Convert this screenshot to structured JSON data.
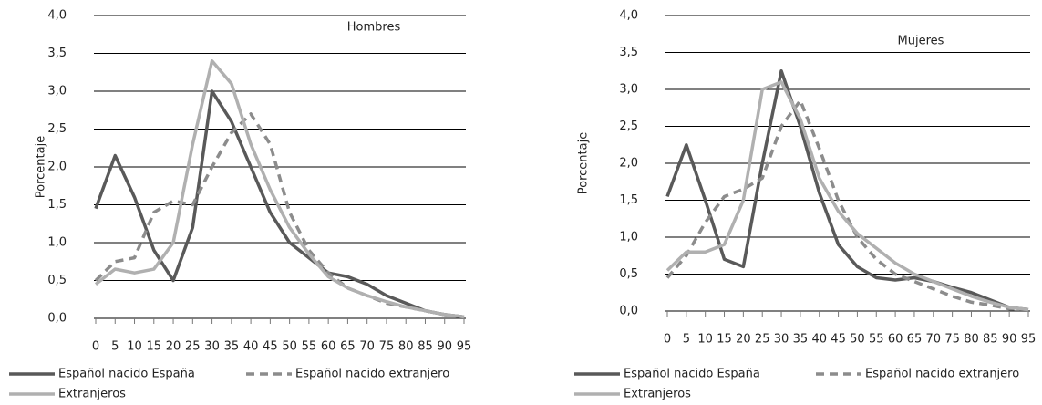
{
  "chart_data": [
    {
      "type": "line",
      "title": "Hombres",
      "y_label": "Porcentaje",
      "x": [
        0,
        5,
        10,
        15,
        20,
        25,
        30,
        35,
        40,
        45,
        50,
        55,
        60,
        65,
        70,
        75,
        80,
        85,
        90,
        95
      ],
      "xlim": [
        0,
        95
      ],
      "xticks": [
        0,
        5,
        10,
        15,
        20,
        25,
        30,
        35,
        40,
        45,
        50,
        55,
        60,
        65,
        70,
        75,
        80,
        85,
        90,
        95
      ],
      "ylim": [
        0,
        4
      ],
      "yticks": [
        {
          "value": 0,
          "label": "0,0"
        },
        {
          "value": 0.5,
          "label": "0,5"
        },
        {
          "value": 1,
          "label": "1,0"
        },
        {
          "value": 1.5,
          "label": "1,5"
        },
        {
          "value": 2,
          "label": "2,0"
        },
        {
          "value": 2.5,
          "label": "2,5"
        },
        {
          "value": 3,
          "label": "3,0"
        },
        {
          "value": 3.5,
          "label": "3,5"
        },
        {
          "value": 4,
          "label": "4,0"
        }
      ],
      "grid": true,
      "series": [
        {
          "name": "Español nacido España",
          "color": "#595959",
          "dashed": false,
          "values": [
            1.45,
            2.15,
            1.6,
            0.9,
            0.5,
            1.2,
            3.0,
            2.6,
            2.0,
            1.4,
            1.0,
            0.8,
            0.6,
            0.55,
            0.45,
            0.3,
            0.2,
            0.1,
            0.05,
            0.02
          ]
        },
        {
          "name": "Español nacido extranjero",
          "color": "#8c8c8c",
          "dashed": true,
          "values": [
            0.5,
            0.75,
            0.8,
            1.4,
            1.55,
            1.5,
            2.0,
            2.45,
            2.7,
            2.3,
            1.4,
            0.9,
            0.6,
            0.4,
            0.3,
            0.2,
            0.15,
            0.1,
            0.05,
            0.02
          ]
        },
        {
          "name": "Extranjeros",
          "color": "#b0b0b0",
          "dashed": false,
          "values": [
            0.45,
            0.65,
            0.6,
            0.65,
            1.0,
            2.3,
            3.4,
            3.1,
            2.3,
            1.7,
            1.2,
            0.85,
            0.55,
            0.4,
            0.3,
            0.22,
            0.15,
            0.1,
            0.05,
            0.02
          ]
        }
      ]
    },
    {
      "type": "line",
      "title": "Mujeres",
      "y_label": "Porcentaje",
      "x": [
        0,
        5,
        10,
        15,
        20,
        25,
        30,
        35,
        40,
        45,
        50,
        55,
        60,
        65,
        70,
        75,
        80,
        85,
        90,
        95
      ],
      "xlim": [
        0,
        95
      ],
      "xticks": [
        0,
        5,
        10,
        15,
        20,
        25,
        30,
        35,
        40,
        45,
        50,
        55,
        60,
        65,
        70,
        75,
        80,
        85,
        90,
        95
      ],
      "ylim": [
        0,
        4
      ],
      "yticks": [
        {
          "value": 0,
          "label": "0,0"
        },
        {
          "value": 0.5,
          "label": "0,5"
        },
        {
          "value": 1,
          "label": "1,0"
        },
        {
          "value": 1.5,
          "label": "1,5"
        },
        {
          "value": 2,
          "label": "2,0"
        },
        {
          "value": 2.5,
          "label": "2,5"
        },
        {
          "value": 3,
          "label": "3,0"
        },
        {
          "value": 3.5,
          "label": "3,5"
        },
        {
          "value": 4,
          "label": "4,0"
        }
      ],
      "grid": true,
      "series": [
        {
          "name": "Español nacido España",
          "color": "#595959",
          "dashed": false,
          "values": [
            1.55,
            2.25,
            1.5,
            0.7,
            0.6,
            2.0,
            3.25,
            2.5,
            1.6,
            0.9,
            0.6,
            0.45,
            0.42,
            0.45,
            0.4,
            0.32,
            0.25,
            0.15,
            0.05,
            0.02
          ]
        },
        {
          "name": "Español nacido extranjero",
          "color": "#8c8c8c",
          "dashed": true,
          "values": [
            0.45,
            0.75,
            1.2,
            1.55,
            1.65,
            1.8,
            2.5,
            2.85,
            2.2,
            1.5,
            1.0,
            0.7,
            0.5,
            0.4,
            0.3,
            0.2,
            0.12,
            0.08,
            0.03,
            0.02
          ]
        },
        {
          "name": "Extranjeros",
          "color": "#b0b0b0",
          "dashed": false,
          "values": [
            0.55,
            0.8,
            0.8,
            0.9,
            1.5,
            3.0,
            3.1,
            2.6,
            1.8,
            1.35,
            1.05,
            0.85,
            0.65,
            0.5,
            0.4,
            0.3,
            0.2,
            0.12,
            0.05,
            0.02
          ]
        }
      ]
    }
  ]
}
